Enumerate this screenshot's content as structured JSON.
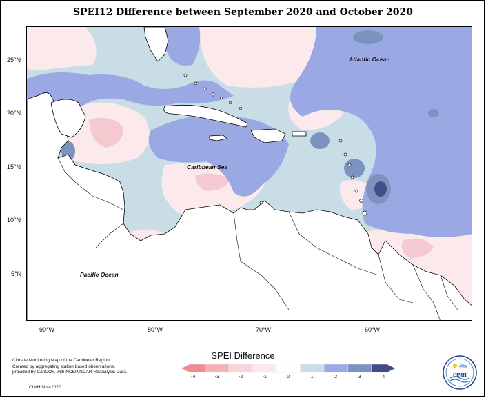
{
  "title": "SPEI12 Difference between September 2020 and October 2020",
  "map": {
    "lat_labels": [
      "25°N",
      "20°N",
      "15°N",
      "10°N",
      "5°N"
    ],
    "lon_labels": [
      "90°W",
      "80°W",
      "70°W",
      "60°W"
    ],
    "ocean_labels": {
      "atlantic": "Atlantic Ocean",
      "caribbean": "Caribbean Sea",
      "pacific": "Pacific Ocean"
    }
  },
  "legend": {
    "title": "SPEI Difference",
    "ticks": [
      "-4",
      "-3",
      "-2",
      "-1",
      "0",
      "1",
      "2",
      "3",
      "4"
    ],
    "colors": [
      "#f28b91",
      "#f4b2b8",
      "#f8d3d7",
      "#fce9ec",
      "#ffffff",
      "#c8dde6",
      "#9aa9e3",
      "#7c93c0",
      "#424c86"
    ]
  },
  "credits": {
    "lines": [
      "Climate Monitoring Map of the Caribbean Region.",
      "Created by aggregating station based observations,",
      "provided by CariCOF, with NCEP/NCAR Reanalysis Data."
    ],
    "issuer": "CIMH Nov-2020"
  },
  "logo": {
    "text": "CIMH"
  }
}
